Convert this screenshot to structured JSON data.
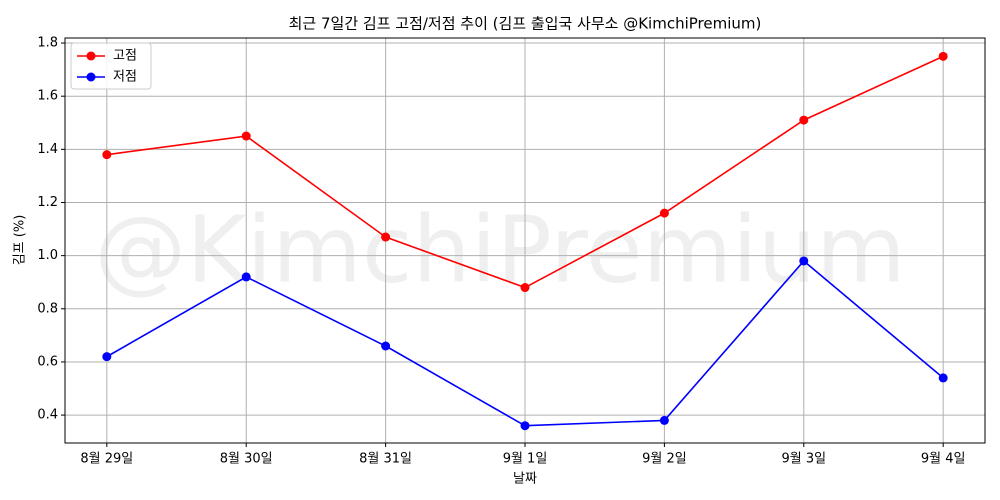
{
  "chart_data": {
    "type": "line",
    "title": "최근 7일간 김프 고점/저점 추이 (김프 출입국 사무소 @KimchiPremium)",
    "watermark": "@KimchiPremium",
    "x_label": "날짜",
    "y_label": "김프 (%)",
    "categories": [
      "8월 29일",
      "8월 30일",
      "8월 31일",
      "9월 1일",
      "9월 2일",
      "9월 3일",
      "9월 4일"
    ],
    "series": [
      {
        "name": "고점",
        "color": "#ff0000",
        "values": [
          1.38,
          1.45,
          1.07,
          0.88,
          1.16,
          1.51,
          1.75
        ]
      },
      {
        "name": "저점",
        "color": "#0000ff",
        "values": [
          0.62,
          0.92,
          0.66,
          0.36,
          0.38,
          0.98,
          0.54
        ]
      }
    ],
    "ylim": [
      0.295,
      1.819
    ],
    "yticks": [
      0.4,
      0.6,
      0.8,
      {
        "value": 1,
        "label": "1.0"
      },
      1.2,
      1.4,
      1.6,
      1.8
    ],
    "grid": true,
    "legend": "upper-left"
  }
}
